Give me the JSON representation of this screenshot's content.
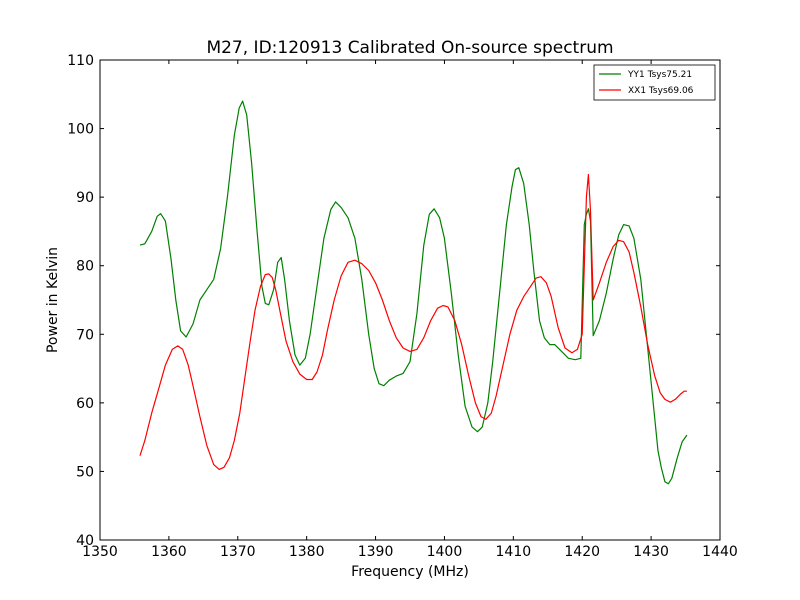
{
  "chart_data": {
    "type": "line",
    "title": "M27, ID:120913 Calibrated On-source spectrum",
    "xlabel": "Frequency (MHz)",
    "ylabel": "Power in Kelvin",
    "xlim": [
      1350,
      1440
    ],
    "ylim": [
      40,
      110
    ],
    "xticks": [
      1350,
      1360,
      1370,
      1380,
      1390,
      1400,
      1410,
      1420,
      1430,
      1440
    ],
    "yticks": [
      40,
      50,
      60,
      70,
      80,
      90,
      100,
      110
    ],
    "grid": false,
    "legend_position": "top-right",
    "series": [
      {
        "name": "YY1 Tsys75.21",
        "color": "#008000",
        "x": [
          1355.8,
          1356.5,
          1357.5,
          1358.3,
          1358.8,
          1359.5,
          1360.3,
          1361.0,
          1361.7,
          1362.5,
          1363.5,
          1364.5,
          1365.5,
          1366.5,
          1367.5,
          1368.5,
          1369.5,
          1370.2,
          1370.7,
          1371.3,
          1372.0,
          1372.8,
          1373.5,
          1374.0,
          1374.5,
          1375.2,
          1375.8,
          1376.3,
          1376.8,
          1377.5,
          1378.3,
          1379.0,
          1379.8,
          1380.5,
          1381.5,
          1382.5,
          1383.5,
          1384.2,
          1385.0,
          1386.0,
          1387.0,
          1388.0,
          1389.0,
          1389.8,
          1390.5,
          1391.2,
          1392.0,
          1393.0,
          1394.0,
          1395.0,
          1396.0,
          1397.0,
          1397.8,
          1398.5,
          1399.3,
          1400.0,
          1401.0,
          1402.0,
          1403.0,
          1404.0,
          1404.8,
          1405.5,
          1406.3,
          1407.0,
          1408.0,
          1409.0,
          1409.8,
          1410.3,
          1410.8,
          1411.5,
          1412.3,
          1413.0,
          1413.8,
          1414.5,
          1415.3,
          1416.0,
          1417.0,
          1418.0,
          1419.0,
          1419.8,
          1420.3,
          1420.6,
          1420.9,
          1421.2,
          1421.6,
          1422.5,
          1423.5,
          1424.5,
          1425.3,
          1426.0,
          1426.8,
          1427.5,
          1428.5,
          1429.5,
          1430.3,
          1431.0,
          1431.5,
          1432.0,
          1432.5,
          1433.0,
          1433.8,
          1434.5,
          1435.2
        ],
        "values": [
          83.0,
          83.2,
          85.0,
          87.2,
          87.6,
          86.5,
          81.0,
          75.0,
          70.5,
          69.6,
          71.5,
          75.0,
          76.5,
          78.0,
          82.5,
          90.0,
          99.0,
          103.0,
          104.0,
          102.0,
          95.0,
          85.0,
          77.0,
          74.5,
          74.3,
          76.5,
          80.5,
          81.2,
          78.0,
          72.0,
          67.0,
          65.5,
          66.5,
          70.0,
          77.0,
          84.0,
          88.2,
          89.3,
          88.5,
          87.0,
          84.0,
          78.0,
          70.0,
          65.0,
          62.8,
          62.5,
          63.3,
          63.9,
          64.3,
          66.0,
          73.0,
          83.0,
          87.5,
          88.3,
          87.0,
          84.0,
          76.0,
          67.0,
          59.5,
          56.5,
          55.8,
          56.5,
          60.0,
          66.0,
          76.0,
          86.0,
          91.5,
          94.0,
          94.3,
          92.0,
          86.0,
          79.0,
          72.0,
          69.5,
          68.5,
          68.5,
          67.5,
          66.5,
          66.3,
          66.5,
          86.0,
          87.5,
          88.3,
          86.5,
          69.8,
          72.0,
          76.0,
          81.0,
          84.5,
          86.0,
          85.8,
          84.0,
          78.0,
          68.0,
          60.0,
          53.0,
          50.5,
          48.5,
          48.2,
          49.0,
          52.0,
          54.3,
          55.3
        ]
      },
      {
        "name": "XX1 Tsys69.06",
        "color": "#ff0000",
        "x": [
          1355.8,
          1356.5,
          1357.5,
          1358.5,
          1359.5,
          1360.5,
          1361.3,
          1362.0,
          1362.8,
          1363.5,
          1364.5,
          1365.5,
          1366.5,
          1367.3,
          1368.0,
          1368.8,
          1369.5,
          1370.3,
          1371.0,
          1371.8,
          1372.5,
          1373.3,
          1374.0,
          1374.5,
          1375.0,
          1375.5,
          1376.2,
          1377.0,
          1378.0,
          1379.0,
          1380.0,
          1380.8,
          1381.5,
          1382.3,
          1383.0,
          1384.0,
          1385.0,
          1386.0,
          1387.0,
          1388.0,
          1389.0,
          1390.0,
          1391.0,
          1392.0,
          1393.0,
          1394.0,
          1395.0,
          1396.0,
          1397.0,
          1398.0,
          1399.0,
          1399.8,
          1400.5,
          1401.5,
          1402.5,
          1403.5,
          1404.5,
          1405.3,
          1406.0,
          1406.8,
          1407.5,
          1408.5,
          1409.5,
          1410.5,
          1411.5,
          1412.5,
          1413.3,
          1414.0,
          1414.8,
          1415.5,
          1416.5,
          1417.5,
          1418.5,
          1419.3,
          1420.0,
          1420.3,
          1420.6,
          1420.9,
          1421.2,
          1421.6,
          1422.5,
          1423.5,
          1424.5,
          1425.3,
          1426.0,
          1426.8,
          1427.5,
          1428.5,
          1429.5,
          1430.5,
          1431.3,
          1432.0,
          1432.8,
          1433.5,
          1434.3,
          1434.8,
          1435.2
        ],
        "values": [
          52.3,
          54.5,
          58.5,
          62.0,
          65.5,
          67.8,
          68.3,
          67.8,
          65.5,
          62.5,
          58.0,
          53.8,
          51.0,
          50.3,
          50.6,
          52.0,
          54.5,
          58.5,
          63.5,
          69.0,
          73.5,
          77.0,
          78.7,
          78.8,
          78.3,
          76.5,
          73.0,
          69.0,
          66.0,
          64.2,
          63.4,
          63.4,
          64.5,
          67.0,
          70.5,
          75.0,
          78.5,
          80.5,
          80.8,
          80.3,
          79.3,
          77.5,
          75.0,
          72.0,
          69.5,
          68.0,
          67.5,
          67.8,
          69.5,
          72.0,
          73.8,
          74.2,
          74.0,
          72.0,
          68.5,
          64.0,
          60.0,
          58.0,
          57.6,
          58.5,
          61.0,
          65.5,
          70.0,
          73.5,
          75.5,
          77.0,
          78.2,
          78.4,
          77.5,
          75.5,
          71.0,
          68.0,
          67.3,
          67.8,
          70.0,
          80.0,
          90.0,
          93.3,
          88.0,
          75.0,
          77.5,
          80.5,
          82.8,
          83.7,
          83.5,
          82.0,
          79.0,
          74.0,
          68.5,
          64.0,
          61.5,
          60.5,
          60.1,
          60.5,
          61.3,
          61.7,
          61.7
        ]
      }
    ]
  }
}
